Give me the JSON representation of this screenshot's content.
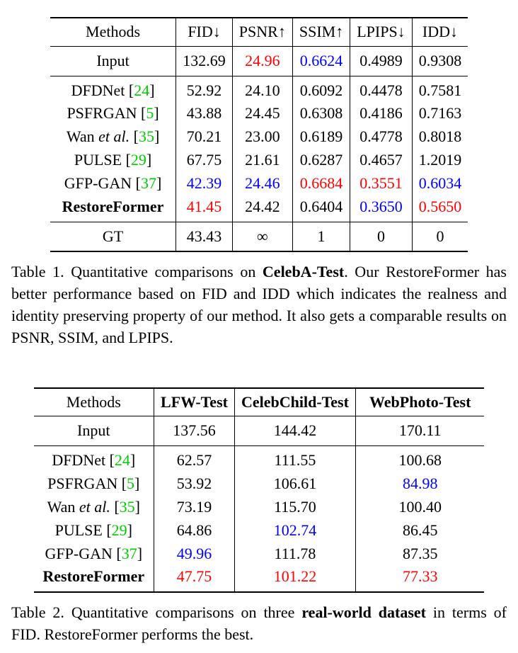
{
  "colors": {
    "best": "#ff0000",
    "second": "#0000ff",
    "citation": "#00cc00",
    "text": "#000000"
  },
  "table1": {
    "header": [
      [
        {
          "t": "Methods"
        }
      ],
      [
        {
          "t": "FID↓"
        }
      ],
      [
        {
          "t": "PSNR↑"
        }
      ],
      [
        {
          "t": "SSIM↑"
        }
      ],
      [
        {
          "t": "LPIPS↓"
        }
      ],
      [
        {
          "t": "IDD↓"
        }
      ]
    ],
    "sections": [
      {
        "name": "input",
        "rows": [
          {
            "cells": [
              [
                {
                  "t": "Input"
                }
              ],
              [
                {
                  "t": "132.69"
                }
              ],
              [
                {
                  "t": "24.96",
                  "c": "best"
                }
              ],
              [
                {
                  "t": "0.6624",
                  "c": "second"
                }
              ],
              [
                {
                  "t": "0.4989"
                }
              ],
              [
                {
                  "t": "0.9308"
                }
              ]
            ]
          }
        ]
      },
      {
        "name": "methods",
        "rows": [
          {
            "cells": [
              [
                {
                  "t": "DFDNet ["
                },
                {
                  "t": "24",
                  "c": "citation"
                },
                {
                  "t": "]"
                }
              ],
              [
                {
                  "t": "52.92"
                }
              ],
              [
                {
                  "t": "24.10"
                }
              ],
              [
                {
                  "t": "0.6092"
                }
              ],
              [
                {
                  "t": "0.4478"
                }
              ],
              [
                {
                  "t": "0.7581"
                }
              ]
            ]
          },
          {
            "cells": [
              [
                {
                  "t": "PSFRGAN ["
                },
                {
                  "t": "5",
                  "c": "citation"
                },
                {
                  "t": "]"
                }
              ],
              [
                {
                  "t": "43.88"
                }
              ],
              [
                {
                  "t": "24.45"
                }
              ],
              [
                {
                  "t": "0.6308"
                }
              ],
              [
                {
                  "t": "0.4186"
                }
              ],
              [
                {
                  "t": "0.7163"
                }
              ]
            ]
          },
          {
            "cells": [
              [
                {
                  "t": "Wan "
                },
                {
                  "t": "et al.",
                  "i": true
                },
                {
                  "t": " ["
                },
                {
                  "t": "35",
                  "c": "citation"
                },
                {
                  "t": "]"
                }
              ],
              [
                {
                  "t": "70.21"
                }
              ],
              [
                {
                  "t": "23.00"
                }
              ],
              [
                {
                  "t": "0.6189"
                }
              ],
              [
                {
                  "t": "0.4778"
                }
              ],
              [
                {
                  "t": "0.8018"
                }
              ]
            ]
          },
          {
            "cells": [
              [
                {
                  "t": "PULSE ["
                },
                {
                  "t": "29",
                  "c": "citation"
                },
                {
                  "t": "]"
                }
              ],
              [
                {
                  "t": "67.75"
                }
              ],
              [
                {
                  "t": "21.61"
                }
              ],
              [
                {
                  "t": "0.6287"
                }
              ],
              [
                {
                  "t": "0.4657"
                }
              ],
              [
                {
                  "t": "1.2019"
                }
              ]
            ]
          },
          {
            "cells": [
              [
                {
                  "t": "GFP-GAN ["
                },
                {
                  "t": "37",
                  "c": "citation"
                },
                {
                  "t": "]"
                }
              ],
              [
                {
                  "t": "42.39",
                  "c": "second"
                }
              ],
              [
                {
                  "t": "24.46",
                  "c": "second"
                }
              ],
              [
                {
                  "t": "0.6684",
                  "c": "best"
                }
              ],
              [
                {
                  "t": "0.3551",
                  "c": "best"
                }
              ],
              [
                {
                  "t": "0.6034",
                  "c": "second"
                }
              ]
            ]
          },
          {
            "cells": [
              [
                {
                  "t": "RestoreFormer",
                  "b": true
                }
              ],
              [
                {
                  "t": "41.45",
                  "c": "best"
                }
              ],
              [
                {
                  "t": "24.42"
                }
              ],
              [
                {
                  "t": "0.6404"
                }
              ],
              [
                {
                  "t": "0.3650",
                  "c": "second"
                }
              ],
              [
                {
                  "t": "0.5650",
                  "c": "best"
                }
              ]
            ]
          }
        ]
      },
      {
        "name": "gt",
        "rows": [
          {
            "cells": [
              [
                {
                  "t": "GT"
                }
              ],
              [
                {
                  "t": "43.43"
                }
              ],
              [
                {
                  "t": "∞"
                }
              ],
              [
                {
                  "t": "1"
                }
              ],
              [
                {
                  "t": "0"
                }
              ],
              [
                {
                  "t": "0"
                }
              ]
            ]
          }
        ]
      }
    ],
    "caption": [
      {
        "t": "Table 1. Quantitative comparisons on "
      },
      {
        "t": "CelebA-Test",
        "b": true
      },
      {
        "t": ". Our RestoreFormer has better performance based on FID and IDD which indicates the realness and identity preserving property of our method. It also gets a comparable results on PSNR, SSIM, and LPIPS."
      }
    ]
  },
  "table2": {
    "header": [
      [
        {
          "t": "Methods"
        }
      ],
      [
        {
          "t": "LFW-Test",
          "b": true
        }
      ],
      [
        {
          "t": "CelebChild-Test",
          "b": true
        }
      ],
      [
        {
          "t": "WebPhoto-Test",
          "b": true
        }
      ]
    ],
    "sections": [
      {
        "name": "input",
        "rows": [
          {
            "cells": [
              [
                {
                  "t": "Input"
                }
              ],
              [
                {
                  "t": "137.56"
                }
              ],
              [
                {
                  "t": "144.42"
                }
              ],
              [
                {
                  "t": "170.11"
                }
              ]
            ]
          }
        ]
      },
      {
        "name": "methods",
        "rows": [
          {
            "cells": [
              [
                {
                  "t": "DFDNet ["
                },
                {
                  "t": "24",
                  "c": "citation"
                },
                {
                  "t": "]"
                }
              ],
              [
                {
                  "t": "62.57"
                }
              ],
              [
                {
                  "t": "111.55"
                }
              ],
              [
                {
                  "t": "100.68"
                }
              ]
            ]
          },
          {
            "cells": [
              [
                {
                  "t": "PSFRGAN ["
                },
                {
                  "t": "5",
                  "c": "citation"
                },
                {
                  "t": "]"
                }
              ],
              [
                {
                  "t": "53.92"
                }
              ],
              [
                {
                  "t": "106.61"
                }
              ],
              [
                {
                  "t": "84.98",
                  "c": "second"
                }
              ]
            ]
          },
          {
            "cells": [
              [
                {
                  "t": "Wan "
                },
                {
                  "t": "et al.",
                  "i": true
                },
                {
                  "t": " ["
                },
                {
                  "t": "35",
                  "c": "citation"
                },
                {
                  "t": "]"
                }
              ],
              [
                {
                  "t": "73.19"
                }
              ],
              [
                {
                  "t": "115.70"
                }
              ],
              [
                {
                  "t": "100.40"
                }
              ]
            ]
          },
          {
            "cells": [
              [
                {
                  "t": "PULSE ["
                },
                {
                  "t": "29",
                  "c": "citation"
                },
                {
                  "t": "]"
                }
              ],
              [
                {
                  "t": "64.86"
                }
              ],
              [
                {
                  "t": "102.74",
                  "c": "second"
                }
              ],
              [
                {
                  "t": "86.45"
                }
              ]
            ]
          },
          {
            "cells": [
              [
                {
                  "t": "GFP-GAN ["
                },
                {
                  "t": "37",
                  "c": "citation"
                },
                {
                  "t": "]"
                }
              ],
              [
                {
                  "t": "49.96",
                  "c": "second"
                }
              ],
              [
                {
                  "t": "111.78"
                }
              ],
              [
                {
                  "t": "87.35"
                }
              ]
            ]
          },
          {
            "cells": [
              [
                {
                  "t": "RestoreFormer",
                  "b": true
                }
              ],
              [
                {
                  "t": "47.75",
                  "c": "best"
                }
              ],
              [
                {
                  "t": "101.22",
                  "c": "best"
                }
              ],
              [
                {
                  "t": "77.33",
                  "c": "best"
                }
              ]
            ]
          }
        ]
      }
    ],
    "caption": [
      {
        "t": "Table 2. Quantitative comparisons on three "
      },
      {
        "t": "real-world dataset",
        "b": true
      },
      {
        "t": " in terms of FID. RestoreFormer performs the best."
      }
    ]
  }
}
